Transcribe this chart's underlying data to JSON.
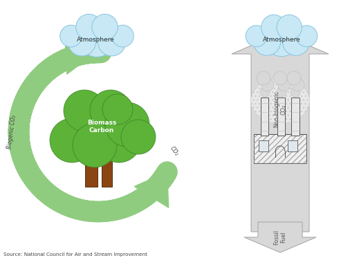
{
  "background_color": "#ffffff",
  "figure_width": 5.19,
  "figure_height": 3.73,
  "dpi": 100,
  "arrow_color": "#90CC80",
  "arrow_color_dark": "#7ABB6A",
  "cloud_fill": "#C8E8F5",
  "cloud_edge": "#88C4E0",
  "atmosphere_text": "Atmosphere",
  "biomass_text": "Biomass\nCarbon",
  "biogenic_co2_text": "Biogenic CO₂",
  "co2_text": "CO₂",
  "non_biogenic_text": "Non-biogenic\nCO₂",
  "fossil_fuel_text": "Fossil\nFuel",
  "source_text": "Source: National Council for Air and Stream Improvement",
  "tree_trunk_color": "#8B4513",
  "tree_foliage_color": "#5CB338",
  "tree_foliage_edge": "#3A8020",
  "linear_arrow_fill": "#D8D8D8",
  "linear_arrow_edge": "#AAAAAA",
  "factory_line": "#555555",
  "factory_hatch": "#888888"
}
